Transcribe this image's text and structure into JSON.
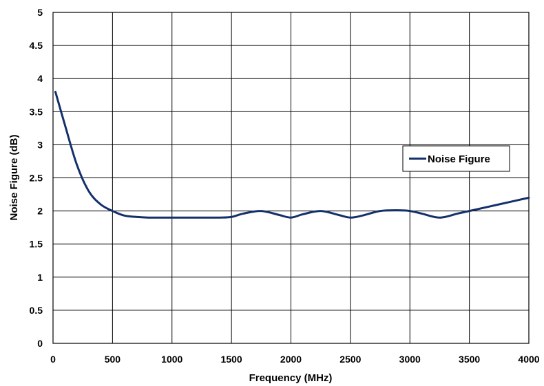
{
  "chart_data": {
    "type": "line",
    "title": "",
    "xlabel": "Frequency (MHz)",
    "ylabel": "Noise Figure (dB)",
    "xlim": [
      0,
      4000
    ],
    "ylim": [
      0,
      5
    ],
    "xticks": [
      0,
      500,
      1000,
      1500,
      2000,
      2500,
      3000,
      3500,
      4000
    ],
    "yticks": [
      0,
      0.5,
      1,
      1.5,
      2,
      2.5,
      3,
      3.5,
      4,
      4.5,
      5
    ],
    "grid": true,
    "legend_position": "right",
    "series": [
      {
        "name": "Noise Figure",
        "color": "#13306b",
        "x": [
          20,
          100,
          200,
          300,
          400,
          500,
          600,
          700,
          800,
          1000,
          1200,
          1400,
          1500,
          1600,
          1750,
          1900,
          2000,
          2100,
          2250,
          2400,
          2500,
          2600,
          2750,
          2900,
          3000,
          3100,
          3250,
          3400,
          3500,
          3750,
          4000
        ],
        "y": [
          3.8,
          3.3,
          2.7,
          2.3,
          2.1,
          2.0,
          1.93,
          1.91,
          1.9,
          1.9,
          1.9,
          1.9,
          1.91,
          1.96,
          2.0,
          1.94,
          1.9,
          1.95,
          2.0,
          1.94,
          1.9,
          1.93,
          2.0,
          2.01,
          2.0,
          1.96,
          1.9,
          1.96,
          2.0,
          2.1,
          2.2
        ]
      }
    ]
  }
}
